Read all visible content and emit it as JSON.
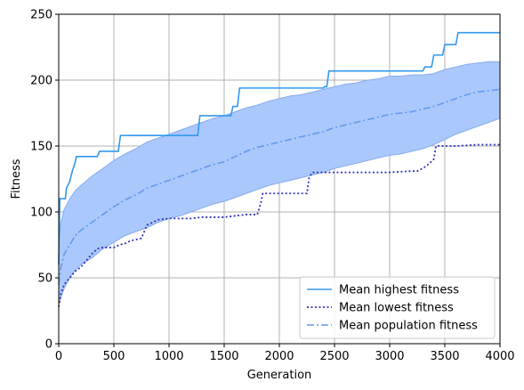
{
  "chart_data": {
    "type": "line",
    "title": "",
    "xlabel": "Generation",
    "ylabel": "Fitness",
    "xlim": [
      0,
      4000
    ],
    "ylim": [
      0,
      250
    ],
    "xticks": [
      0,
      500,
      1000,
      1500,
      2000,
      2500,
      3000,
      3500,
      4000
    ],
    "yticks": [
      0,
      50,
      100,
      150,
      200,
      250
    ],
    "grid": true,
    "legend_position": "lower-right",
    "colors": {
      "highest": "#3399ee",
      "lowest": "#3333bb",
      "population": "#6699ee",
      "band": "#aac8fb",
      "band_edge": "#88aaee"
    },
    "series": [
      {
        "name": "Mean highest fitness",
        "style": "solid",
        "x": [
          0,
          10,
          60,
          70,
          100,
          120,
          150,
          160,
          350,
          370,
          540,
          560,
          1260,
          1280,
          1560,
          1580,
          1620,
          1640,
          2400,
          2410,
          2430,
          2450,
          3300,
          3320,
          3380,
          3400,
          3480,
          3500,
          3600,
          3620,
          4000
        ],
        "y": [
          60,
          110,
          110,
          118,
          123,
          130,
          138,
          142,
          142,
          146,
          146,
          158,
          158,
          173,
          173,
          180,
          180,
          194,
          194,
          195,
          195,
          207,
          207,
          210,
          210,
          219,
          219,
          227,
          227,
          236,
          236
        ]
      },
      {
        "name": "Mean lowest fitness",
        "style": "dotted",
        "x": [
          0,
          20,
          50,
          100,
          150,
          200,
          250,
          300,
          350,
          400,
          450,
          500,
          550,
          600,
          650,
          700,
          750,
          800,
          900,
          1000,
          1100,
          1200,
          1300,
          1400,
          1500,
          1600,
          1700,
          1800,
          1830,
          1850,
          2000,
          2250,
          2270,
          2300,
          2500,
          2800,
          3000,
          3200,
          3250,
          3300,
          3350,
          3400,
          3420,
          3500,
          3600,
          3800,
          4000
        ],
        "y": [
          28,
          38,
          45,
          50,
          55,
          58,
          63,
          68,
          72,
          73,
          73,
          73,
          75,
          76,
          78,
          79,
          80,
          90,
          94,
          95,
          95,
          95,
          96,
          96,
          96,
          97,
          98,
          98,
          106,
          114,
          114,
          114,
          126,
          130,
          130,
          130,
          130,
          131,
          131,
          133,
          136,
          140,
          150,
          150,
          150,
          151,
          151
        ]
      },
      {
        "name": "Mean population fitness",
        "style": "dashdot",
        "x": [
          0,
          20,
          50,
          100,
          150,
          200,
          300,
          400,
          500,
          600,
          700,
          800,
          900,
          1000,
          1100,
          1200,
          1300,
          1400,
          1500,
          1600,
          1700,
          1800,
          1900,
          2000,
          2100,
          2200,
          2300,
          2400,
          2500,
          2600,
          2700,
          2800,
          2900,
          3000,
          3100,
          3200,
          3300,
          3400,
          3500,
          3600,
          3700,
          3800,
          3900,
          4000
        ],
        "y": [
          45,
          58,
          68,
          75,
          82,
          86,
          92,
          98,
          104,
          109,
          113,
          118,
          121,
          124,
          127,
          130,
          133,
          136,
          138,
          142,
          146,
          149,
          151,
          153,
          155,
          157,
          159,
          161,
          164,
          166,
          168,
          170,
          172,
          174,
          175,
          176,
          178,
          180,
          183,
          186,
          189,
          191,
          192,
          193
        ]
      }
    ],
    "band": {
      "x": [
        0,
        20,
        50,
        100,
        150,
        200,
        300,
        400,
        500,
        600,
        700,
        800,
        900,
        1000,
        1100,
        1200,
        1300,
        1400,
        1500,
        1600,
        1700,
        1800,
        1900,
        2000,
        2100,
        2200,
        2300,
        2400,
        2500,
        2600,
        2700,
        2800,
        2900,
        3000,
        3100,
        3200,
        3300,
        3400,
        3500,
        3600,
        3700,
        3800,
        3900,
        4000
      ],
      "upper": [
        75,
        92,
        102,
        110,
        116,
        120,
        127,
        133,
        139,
        144,
        148,
        153,
        156,
        159,
        162,
        165,
        168,
        171,
        173,
        176,
        179,
        181,
        184,
        186,
        188,
        189,
        191,
        193,
        195,
        197,
        198,
        200,
        201,
        203,
        203,
        204,
        204,
        205,
        208,
        210,
        212,
        213,
        214,
        214
      ],
      "lower": [
        30,
        35,
        42,
        50,
        56,
        60,
        65,
        72,
        77,
        82,
        85,
        88,
        92,
        95,
        97,
        100,
        103,
        106,
        108,
        111,
        114,
        117,
        120,
        122,
        124,
        126,
        128,
        130,
        133,
        135,
        137,
        139,
        141,
        143,
        144,
        146,
        148,
        151,
        155,
        159,
        162,
        165,
        168,
        171
      ]
    }
  }
}
